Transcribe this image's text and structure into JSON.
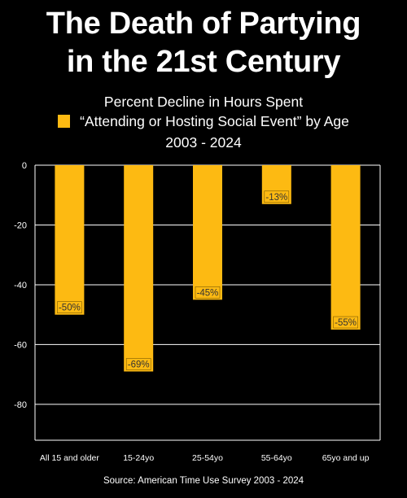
{
  "header": {
    "title_line1": "The Death of Partying",
    "title_line2": "in the 21st Century"
  },
  "chart_data": {
    "type": "bar",
    "title_line1": "Percent Decline in Hours Spent",
    "legend_entry": "“Attending or Hosting Social Event” by Age",
    "title_line3": "2003 - 2024",
    "categories": [
      "All 15 and older",
      "15-24yo",
      "25-54yo",
      "55-64yo",
      "65yo and up"
    ],
    "series": [
      {
        "values": [
          -50,
          -69,
          -45,
          -13,
          -55
        ],
        "data_labels": [
          "-50%",
          "-69%",
          "-45%",
          "-13%",
          "-55%"
        ]
      }
    ],
    "ylim": [
      -92,
      0
    ],
    "yticks": [
      0,
      -20,
      -40,
      -60,
      -80
    ],
    "ytick_labels": [
      "0",
      "-20",
      "-40",
      "-60",
      "-80"
    ],
    "grid": true,
    "legend_position": "top",
    "colors": {
      "bar": "#FDBA12",
      "background": "#000000",
      "text": "#FFFFFF",
      "gridline": "#FFFFFF",
      "data_label_text": "#333333"
    }
  },
  "footer": {
    "source": "Source: American Time Use Survey 2003 - 2024"
  }
}
